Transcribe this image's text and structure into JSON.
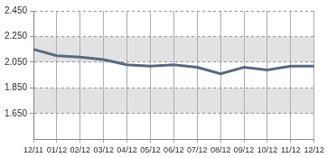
{
  "chart_data": {
    "type": "line",
    "categories": [
      "12/11",
      "01/12",
      "02/12",
      "03/12",
      "04/12",
      "05/12",
      "06/12",
      "07/12",
      "08/12",
      "09/12",
      "10/12",
      "11/12",
      "12/12"
    ],
    "values": [
      2.15,
      2.1,
      2.09,
      2.07,
      2.03,
      2.02,
      2.03,
      2.01,
      1.96,
      2.01,
      1.99,
      2.02,
      2.02
    ],
    "color": "#5a6b80",
    "ylim": [
      1.45,
      2.45
    ],
    "yticks": [
      {
        "value": 1.65,
        "label": "1.650"
      },
      {
        "value": 1.85,
        "label": "1.850"
      },
      {
        "value": 2.05,
        "label": "2.050"
      },
      {
        "value": 2.25,
        "label": "2.250"
      },
      {
        "value": 2.45,
        "label": "2.450"
      }
    ],
    "grid": true
  }
}
